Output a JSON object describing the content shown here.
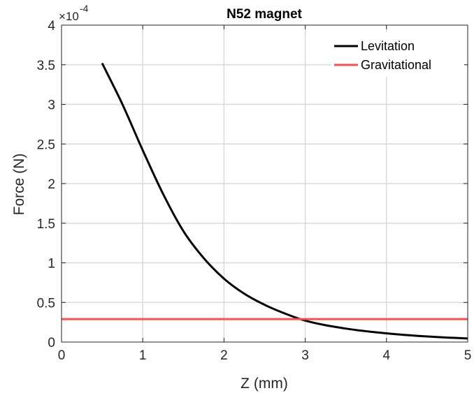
{
  "chart_data": {
    "type": "line",
    "title": "N52 magnet",
    "xlabel": "Z (mm)",
    "ylabel": "Force (N)",
    "xlim": [
      0,
      5
    ],
    "ylim": [
      0,
      4
    ],
    "x_ticks": [
      "0",
      "1",
      "2",
      "3",
      "4",
      "5"
    ],
    "y_ticks": [
      "0",
      "0.5",
      "1",
      "1.5",
      "2",
      "2.5",
      "3",
      "3.5",
      "4"
    ],
    "y_multiplier": {
      "base": "×10",
      "exponent": "-4"
    },
    "grid": true,
    "legend_position": "top-right",
    "series": [
      {
        "name": "Levitation",
        "color": "#000000",
        "x": [
          0.5,
          0.75,
          1.0,
          1.25,
          1.5,
          1.75,
          2.0,
          2.25,
          2.5,
          2.75,
          3.0,
          3.5,
          4.0,
          4.5,
          5.0
        ],
        "y": [
          3.52,
          3.0,
          2.42,
          1.87,
          1.4,
          1.06,
          0.8,
          0.61,
          0.47,
          0.36,
          0.27,
          0.17,
          0.11,
          0.07,
          0.045
        ]
      },
      {
        "name": "Gravitational",
        "color": "#ff4d4d",
        "x": [
          0,
          5
        ],
        "y": [
          0.29,
          0.29
        ]
      }
    ]
  }
}
